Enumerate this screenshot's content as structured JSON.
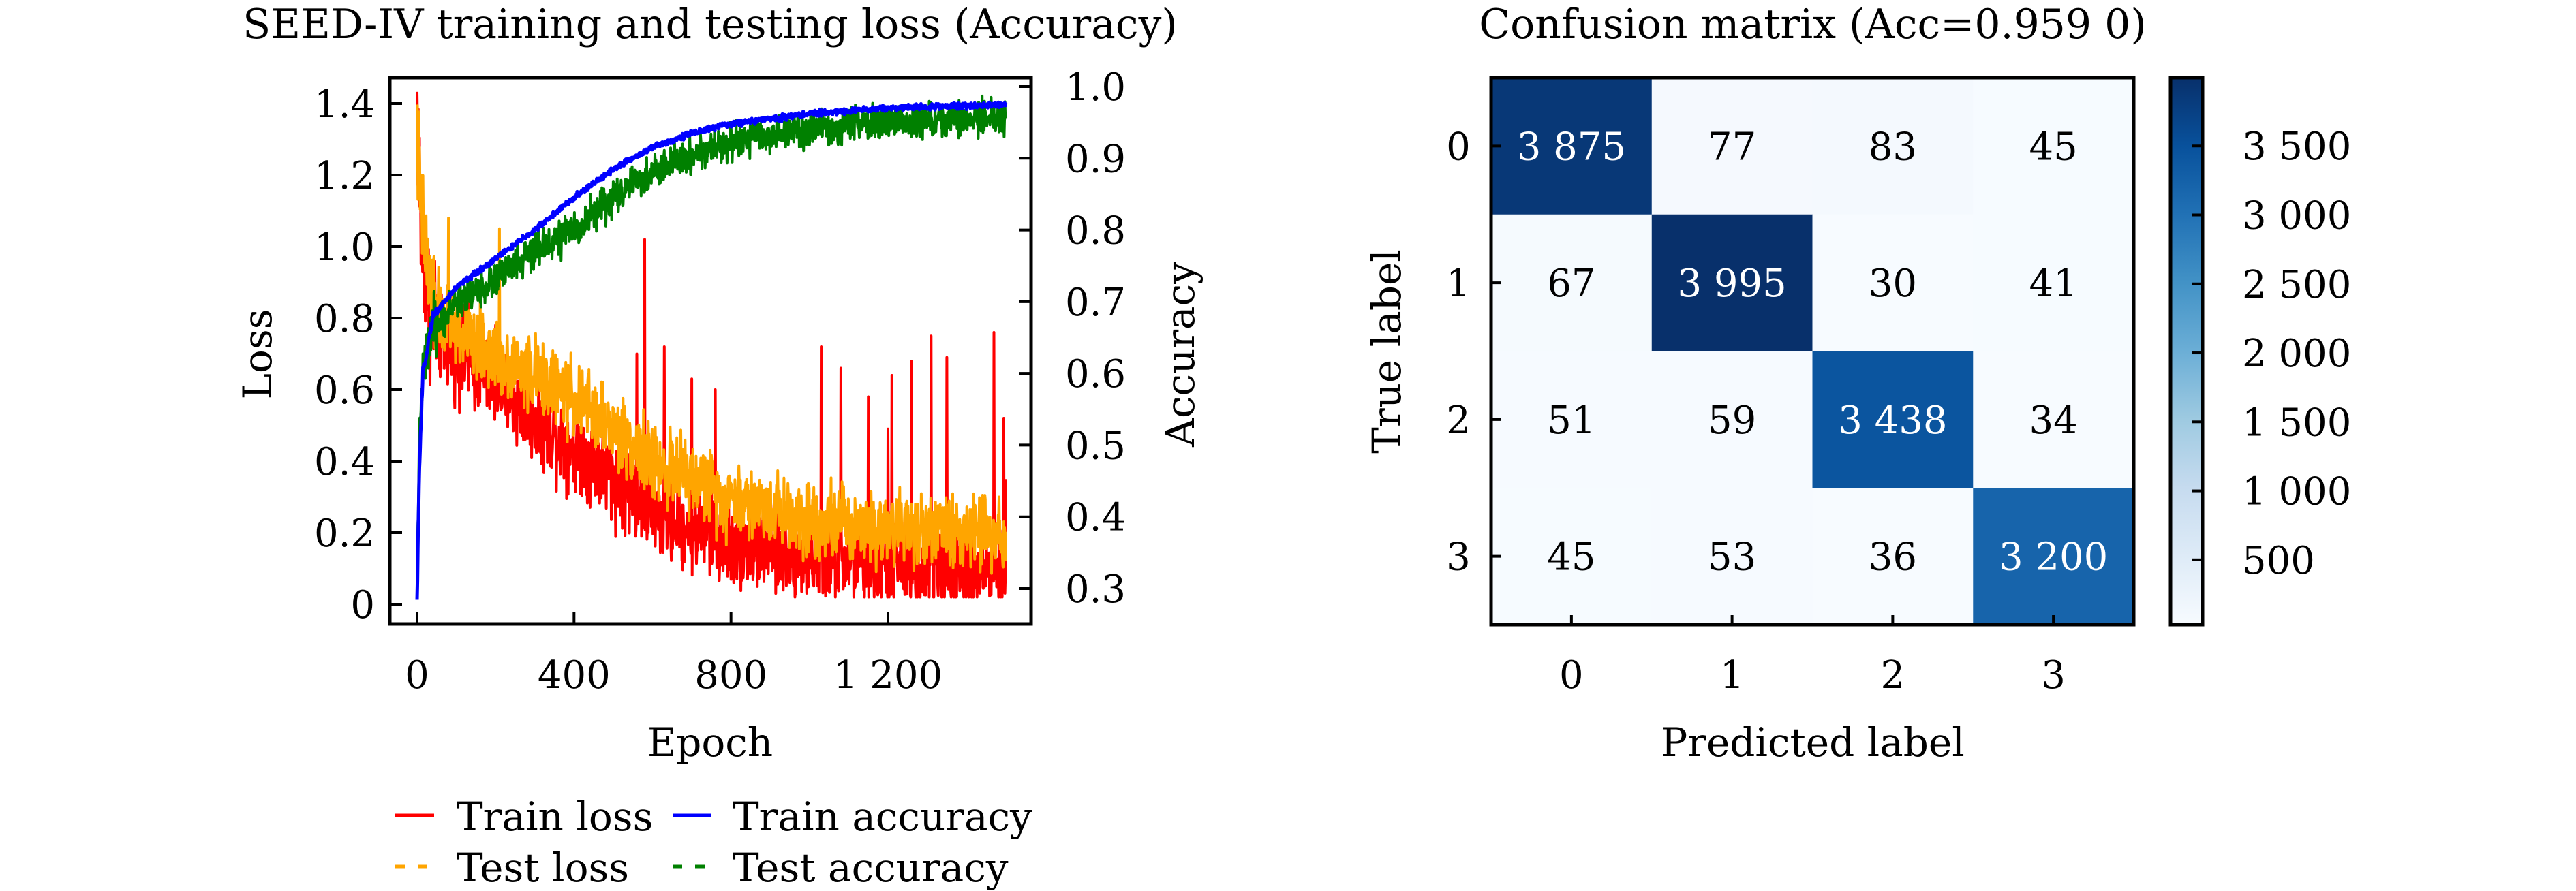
{
  "chart_data": [
    {
      "type": "line",
      "title": "SEED-IV training and testing loss (Accuracy)",
      "xlabel": "Epoch",
      "ylabel": "Loss",
      "y2label": "Accuracy",
      "xlim": [
        -25,
        1630
      ],
      "ylim": [
        -0.06,
        1.5
      ],
      "y2lim": [
        0.2765,
        1.0305
      ],
      "xticks": [
        0,
        400,
        800,
        1200
      ],
      "xtick_labels": [
        "0",
        "400",
        "800",
        "1 200"
      ],
      "yticks": [
        0,
        0.2,
        0.4,
        0.6,
        0.8,
        1.0,
        1.2,
        1.4
      ],
      "ytick_labels": [
        "0",
        "0.2",
        "0.4",
        "0.6",
        "0.8",
        "1.0",
        "1.2",
        "1.4"
      ],
      "y2ticks": [
        0.3,
        0.4,
        0.5,
        0.6,
        0.7,
        0.8,
        0.9,
        1.0
      ],
      "y2tick_labels": [
        "0.3",
        "0.4",
        "0.5",
        "0.6",
        "0.7",
        "0.8",
        "0.9",
        "1.0"
      ],
      "grid": false,
      "legend_position": "below",
      "n_epochs": 1500,
      "series": [
        {
          "name": "Train loss",
          "axis": "left",
          "color": "#ff0000",
          "style": "solid",
          "trend": [
            [
              0,
              1.4
            ],
            [
              10,
              1.05
            ],
            [
              30,
              0.85
            ],
            [
              60,
              0.74
            ],
            [
              150,
              0.66
            ],
            [
              300,
              0.52
            ],
            [
              450,
              0.4
            ],
            [
              600,
              0.26
            ],
            [
              800,
              0.17
            ],
            [
              1000,
              0.13
            ],
            [
              1200,
              0.11
            ],
            [
              1500,
              0.09
            ]
          ],
          "noise": 0.06,
          "spikes": [
            [
              130,
              0.87
            ],
            [
              200,
              0.78
            ],
            [
              560,
              0.7
            ],
            [
              580,
              1.02
            ],
            [
              630,
              0.72
            ],
            [
              700,
              0.63
            ],
            [
              760,
              0.6
            ],
            [
              1030,
              0.72
            ],
            [
              1080,
              0.66
            ],
            [
              1150,
              0.58
            ],
            [
              1200,
              0.49
            ],
            [
              1210,
              0.64
            ],
            [
              1260,
              0.68
            ],
            [
              1310,
              0.75
            ],
            [
              1350,
              0.69
            ],
            [
              1470,
              0.76
            ],
            [
              1495,
              0.52
            ],
            [
              1500,
              0.35
            ]
          ]
        },
        {
          "name": "Test loss",
          "axis": "left",
          "color": "#ffa500",
          "style": "dashed",
          "trend": [
            [
              0,
              1.3
            ],
            [
              10,
              1.1
            ],
            [
              30,
              0.9
            ],
            [
              60,
              0.8
            ],
            [
              150,
              0.72
            ],
            [
              300,
              0.64
            ],
            [
              450,
              0.54
            ],
            [
              600,
              0.4
            ],
            [
              800,
              0.3
            ],
            [
              1000,
              0.24
            ],
            [
              1200,
              0.22
            ],
            [
              1500,
              0.2
            ]
          ],
          "noise": 0.05,
          "spikes": [
            [
              80,
              1.08
            ],
            [
              210,
              1.05
            ]
          ]
        },
        {
          "name": "Train accuracy",
          "axis": "right",
          "color": "#0000ff",
          "style": "solid",
          "trend": [
            [
              0,
              0.28
            ],
            [
              5,
              0.45
            ],
            [
              15,
              0.6
            ],
            [
              40,
              0.68
            ],
            [
              100,
              0.72
            ],
            [
              200,
              0.76
            ],
            [
              300,
              0.8
            ],
            [
              400,
              0.845
            ],
            [
              500,
              0.885
            ],
            [
              600,
              0.915
            ],
            [
              700,
              0.935
            ],
            [
              800,
              0.948
            ],
            [
              1000,
              0.962
            ],
            [
              1200,
              0.97
            ],
            [
              1500,
              0.975
            ]
          ],
          "noise": 0.002,
          "spikes": []
        },
        {
          "name": "Test accuracy",
          "axis": "right",
          "color": "#008000",
          "style": "dashed",
          "trend": [
            [
              0,
              0.3
            ],
            [
              5,
              0.5
            ],
            [
              15,
              0.6
            ],
            [
              40,
              0.66
            ],
            [
              100,
              0.7
            ],
            [
              200,
              0.73
            ],
            [
              300,
              0.77
            ],
            [
              400,
              0.8
            ],
            [
              500,
              0.845
            ],
            [
              600,
              0.88
            ],
            [
              700,
              0.905
            ],
            [
              800,
              0.923
            ],
            [
              1000,
              0.94
            ],
            [
              1200,
              0.95
            ],
            [
              1500,
              0.957
            ]
          ],
          "noise": 0.012,
          "spikes": []
        }
      ]
    },
    {
      "type": "heatmap",
      "title": "Confusion matrix (Acc=0.959 0)",
      "xlabel": "Predicted label",
      "ylabel": "True label",
      "x_categories": [
        "0",
        "1",
        "2",
        "3"
      ],
      "y_categories": [
        "0",
        "1",
        "2",
        "3"
      ],
      "values": [
        [
          3875,
          77,
          83,
          45
        ],
        [
          67,
          3995,
          30,
          41
        ],
        [
          51,
          59,
          3438,
          34
        ],
        [
          45,
          53,
          36,
          3200
        ]
      ],
      "value_labels": [
        [
          "3 875",
          "77",
          "83",
          "45"
        ],
        [
          "67",
          "3 995",
          "30",
          "41"
        ],
        [
          "51",
          "59",
          "3 438",
          "34"
        ],
        [
          "45",
          "53",
          "36",
          "3 200"
        ]
      ],
      "colormap": "Blues",
      "colormap_stops": [
        "#f7fbff",
        "#deebf7",
        "#c6dbef",
        "#9ecae1",
        "#6baed6",
        "#4292c6",
        "#2171b5",
        "#08519c",
        "#08306b"
      ],
      "vmin": 30,
      "vmax": 3995,
      "colorbar_ticks": [
        500,
        1000,
        1500,
        2000,
        2500,
        3000,
        3500
      ],
      "colorbar_tick_labels": [
        "500",
        "1 000",
        "1 500",
        "2 000",
        "2 500",
        "3 000",
        "3 500"
      ],
      "text_color_dark": "#000000",
      "text_color_light": "#ffffff"
    }
  ]
}
